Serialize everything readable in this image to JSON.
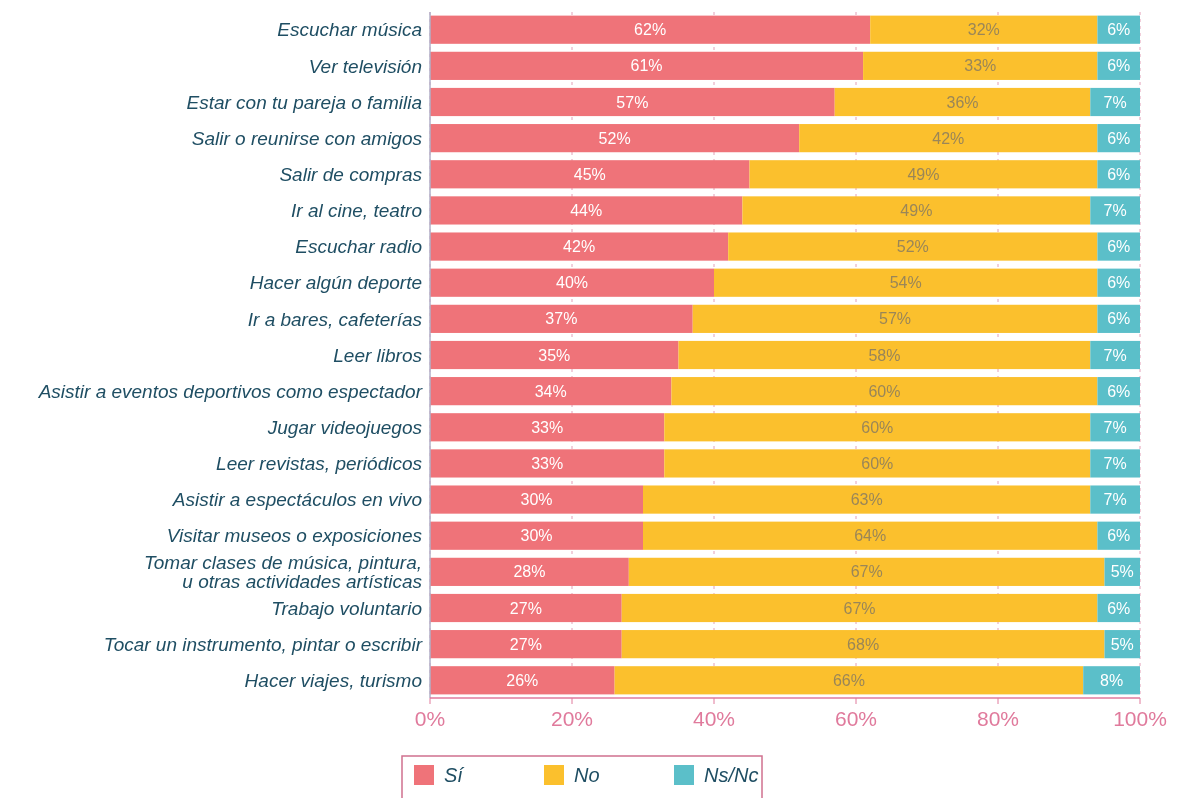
{
  "chart_data": {
    "type": "bar",
    "orientation": "horizontal",
    "stacked": true,
    "grid": "x",
    "legend": "bottom",
    "categories": [
      "Escuchar música",
      "Ver televisión",
      "Estar con tu pareja o familia",
      "Salir o reunirse con amigos",
      "Salir de compras",
      "Ir al cine, teatro",
      "Escuchar radio",
      "Hacer algún deporte",
      "Ir a bares, cafeterías",
      "Leer libros",
      "Asistir a eventos deportivos como espectador",
      "Jugar videojuegos",
      "Leer revistas, periódicos",
      "Asistir a espectáculos en vivo",
      "Visitar museos o exposiciones",
      "Tomar clases de música, pintura, u otras actividades artísticas",
      "Trabajo voluntario",
      "Tocar un instrumento, pintar o escribir",
      "Hacer viajes, turismo"
    ],
    "xlim": [
      0,
      100
    ],
    "xticks": [
      {
        "value": 0,
        "label": "0%"
      },
      {
        "value": 20,
        "label": "20%"
      },
      {
        "value": 40,
        "label": "40%"
      },
      {
        "value": 60,
        "label": "60%"
      },
      {
        "value": 80,
        "label": "80%"
      },
      {
        "value": 100,
        "label": "100%"
      }
    ],
    "series": [
      {
        "name": "Sí",
        "color": "#ef7379",
        "values": [
          62,
          61,
          57,
          52,
          45,
          44,
          42,
          40,
          37,
          35,
          34,
          33,
          33,
          30,
          30,
          28,
          27,
          27,
          26
        ],
        "value_labels": [
          "62%",
          "61%",
          "57%",
          "52%",
          "45%",
          "44%",
          "42%",
          "40%",
          "37%",
          "35%",
          "34%",
          "33%",
          "33%",
          "30%",
          "30%",
          "28%",
          "27%",
          "27%",
          "26%"
        ]
      },
      {
        "name": "No",
        "color": "#fbc02d",
        "values": [
          32,
          33,
          36,
          42,
          49,
          49,
          52,
          54,
          57,
          58,
          60,
          60,
          60,
          63,
          64,
          67,
          67,
          68,
          66
        ],
        "value_labels": [
          "32%",
          "33%",
          "36%",
          "42%",
          "49%",
          "49%",
          "52%",
          "54%",
          "57%",
          "58%",
          "60%",
          "60%",
          "60%",
          "63%",
          "64%",
          "67%",
          "67%",
          "68%",
          "66%"
        ]
      },
      {
        "name": "Ns/Nc",
        "color": "#5bbfc9",
        "values": [
          6,
          6,
          7,
          6,
          6,
          7,
          6,
          6,
          6,
          7,
          6,
          7,
          7,
          7,
          6,
          5,
          6,
          5,
          8
        ],
        "value_labels": [
          "6%",
          "6%",
          "7%",
          "6%",
          "6%",
          "7%",
          "6%",
          "6%",
          "6%",
          "7%",
          "6%",
          "7%",
          "7%",
          "7%",
          "6%",
          "5%",
          "6%",
          "5%",
          "8%"
        ]
      }
    ]
  }
}
